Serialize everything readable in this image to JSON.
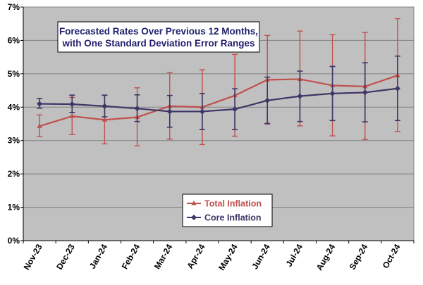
{
  "chart_data": {
    "type": "line",
    "title_lines": [
      "Forecasted Rates Over Previous 12 Months,",
      "with One Standard Deviation Error Ranges"
    ],
    "categories": [
      "Nov-23",
      "Dec-23",
      "Jan-24",
      "Feb-24",
      "Mar-24",
      "Apr-24",
      "May-24",
      "Jun-24",
      "Jul-24",
      "Aug-24",
      "Sep-24",
      "Oct-24"
    ],
    "ylim": [
      0,
      7
    ],
    "y_ticks": [
      "0%",
      "1%",
      "2%",
      "3%",
      "4%",
      "5%",
      "6%",
      "7%"
    ],
    "y_tick_values": [
      0,
      1,
      2,
      3,
      4,
      5,
      6,
      7
    ],
    "grid": true,
    "legend_position": "bottom-center",
    "series": [
      {
        "name": "Total Inflation",
        "color": "#c0504d",
        "marker": "triangle",
        "values": [
          3.43,
          3.73,
          3.62,
          3.7,
          4.03,
          4.0,
          4.35,
          4.82,
          4.84,
          4.65,
          4.62,
          4.95
        ],
        "err_low": [
          3.12,
          3.18,
          2.9,
          2.84,
          3.04,
          2.88,
          3.13,
          3.52,
          3.44,
          3.14,
          3.03,
          3.27
        ],
        "err_high": [
          3.77,
          4.29,
          4.35,
          4.58,
          5.04,
          5.12,
          5.58,
          6.15,
          6.28,
          6.17,
          6.24,
          6.65
        ]
      },
      {
        "name": "Core Inflation",
        "color": "#3f3566",
        "marker": "diamond",
        "values": [
          4.1,
          4.09,
          4.03,
          3.96,
          3.87,
          3.87,
          3.94,
          4.2,
          4.33,
          4.41,
          4.44,
          4.56
        ],
        "err_low": [
          3.97,
          3.84,
          3.71,
          3.57,
          3.4,
          3.33,
          3.33,
          3.5,
          3.57,
          3.6,
          3.56,
          3.6
        ],
        "err_high": [
          4.26,
          4.36,
          4.36,
          4.37,
          4.35,
          4.41,
          4.55,
          4.9,
          5.08,
          5.22,
          5.33,
          5.53
        ]
      }
    ]
  },
  "colors": {
    "plot_background": "#c0c0c0",
    "gridline": "#808080",
    "title_box": "#ffffff",
    "legend_box": "#ffffff"
  }
}
